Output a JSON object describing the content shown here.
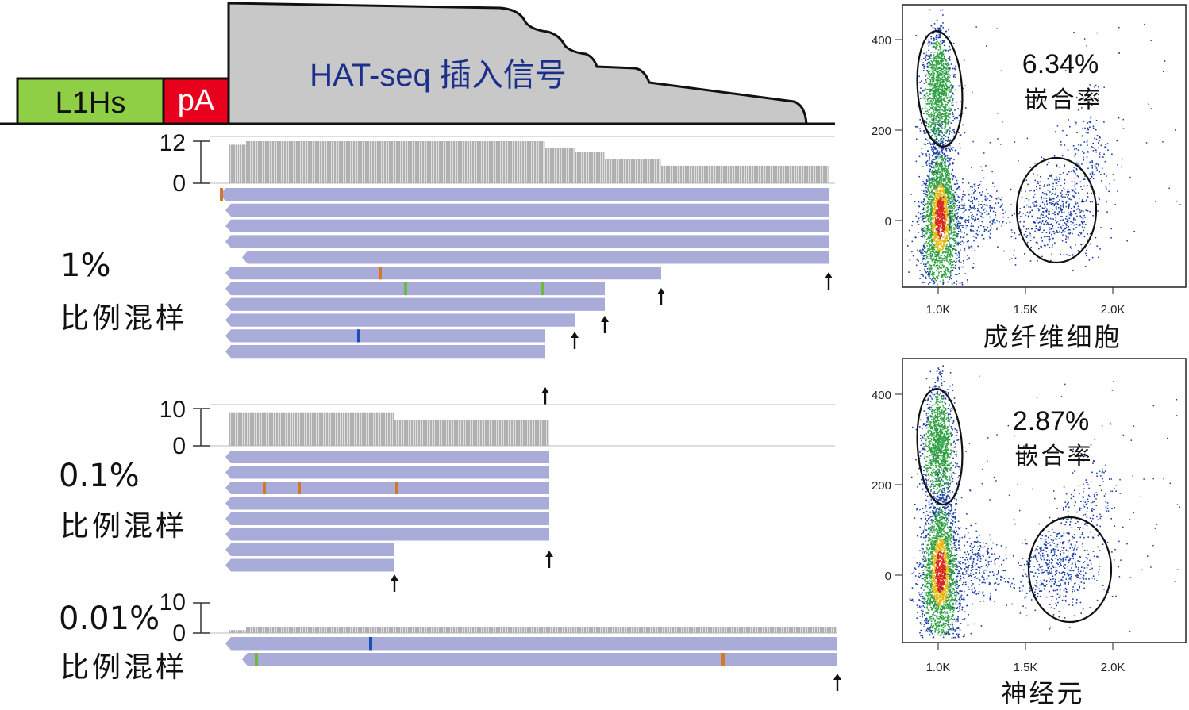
{
  "gene_track": {
    "l1hs_label": "L1Hs",
    "pa_label": "pA",
    "signal_label": "HAT-seq 插入信号",
    "colors": {
      "l1hs": "#8fcf45",
      "pa": "#e8001c",
      "signal": "#c8c8c8",
      "read": "#a9acd9",
      "coverage": "#b0b0b0"
    }
  },
  "samples": [
    {
      "name": "1%",
      "subtitle": "比例混样",
      "coverage_axis": {
        "max_label": "12",
        "min_label": "0",
        "max": 12
      },
      "coverage_steps": [
        {
          "to": 302,
          "value": 11
        },
        {
          "to": 310,
          "value": 11
        },
        {
          "to": 687,
          "value": 12
        },
        {
          "to": 724,
          "value": 10
        },
        {
          "to": 762,
          "value": 9
        },
        {
          "to": 833,
          "value": 7
        },
        {
          "to": 1044,
          "value": 5
        }
      ],
      "reads": [
        {
          "start": 277,
          "end": 1044,
          "marks": [
            {
              "pos": 279,
              "color": "#d4762c"
            }
          ]
        },
        {
          "start": 284,
          "end": 1044,
          "marks": []
        },
        {
          "start": 284,
          "end": 1044,
          "marks": []
        },
        {
          "start": 284,
          "end": 1044,
          "marks": []
        },
        {
          "start": 305,
          "end": 1044,
          "marks": []
        },
        {
          "start": 284,
          "end": 833,
          "marks": [
            {
              "pos": 479,
              "color": "#d4762c"
            }
          ]
        },
        {
          "start": 284,
          "end": 762,
          "marks": [
            {
              "pos": 511,
              "color": "#6cbb3c"
            },
            {
              "pos": 684,
              "color": "#6cbb3c"
            }
          ]
        },
        {
          "start": 284,
          "end": 762,
          "marks": []
        },
        {
          "start": 284,
          "end": 724,
          "marks": []
        },
        {
          "start": 284,
          "end": 687,
          "marks": [
            {
              "pos": 452,
              "color": "#1a4fb3"
            }
          ]
        },
        {
          "start": 284,
          "end": 687,
          "marks": []
        }
      ],
      "arrows": [
        1044,
        833,
        762,
        724,
        687
      ]
    },
    {
      "name": "0.1%",
      "subtitle": "比例混样",
      "coverage_axis": {
        "max_label": "10",
        "min_label": "0",
        "max": 10
      },
      "coverage_steps": [
        {
          "to": 497,
          "value": 9
        },
        {
          "to": 692,
          "value": 7
        }
      ],
      "reads": [
        {
          "start": 284,
          "end": 692,
          "marks": []
        },
        {
          "start": 284,
          "end": 692,
          "marks": []
        },
        {
          "start": 284,
          "end": 692,
          "marks": [
            {
              "pos": 333,
              "color": "#d4762c"
            },
            {
              "pos": 377,
              "color": "#d4762c"
            },
            {
              "pos": 500,
              "color": "#d4762c"
            }
          ]
        },
        {
          "start": 284,
          "end": 692,
          "marks": []
        },
        {
          "start": 284,
          "end": 692,
          "marks": []
        },
        {
          "start": 284,
          "end": 692,
          "marks": []
        },
        {
          "start": 284,
          "end": 497,
          "marks": []
        },
        {
          "start": 284,
          "end": 497,
          "marks": []
        }
      ],
      "arrows": [
        692,
        497
      ]
    },
    {
      "name": "0.01%",
      "subtitle": "比例混样",
      "coverage_axis": {
        "max_label": "10",
        "min_label": "0",
        "max": 10
      },
      "coverage_steps": [
        {
          "to": 310,
          "value": 1
        },
        {
          "to": 1055,
          "value": 2
        }
      ],
      "reads": [
        {
          "start": 284,
          "end": 1055,
          "marks": [
            {
              "pos": 467,
              "color": "#1a4fb3"
            }
          ]
        },
        {
          "start": 305,
          "end": 1055,
          "marks": [
            {
              "pos": 323,
              "color": "#6cbb3c"
            },
            {
              "pos": 911,
              "color": "#d4762c"
            }
          ]
        }
      ],
      "arrows": [
        1055
      ]
    }
  ],
  "facs_panels": [
    {
      "percent": "6.34%",
      "rate_label": "嵌合率",
      "cell_type": "成纤维细胞",
      "x_ticks": [
        "1.0K",
        "1.5K",
        "2.0K"
      ],
      "y_ticks": [
        "400",
        "200",
        "0"
      ]
    },
    {
      "percent": "2.87%",
      "rate_label": "嵌合率",
      "cell_type": "神经元",
      "x_ticks": [
        "1.0K",
        "1.5K",
        "2.0K"
      ],
      "y_ticks": [
        "400",
        "200",
        "0"
      ]
    }
  ]
}
